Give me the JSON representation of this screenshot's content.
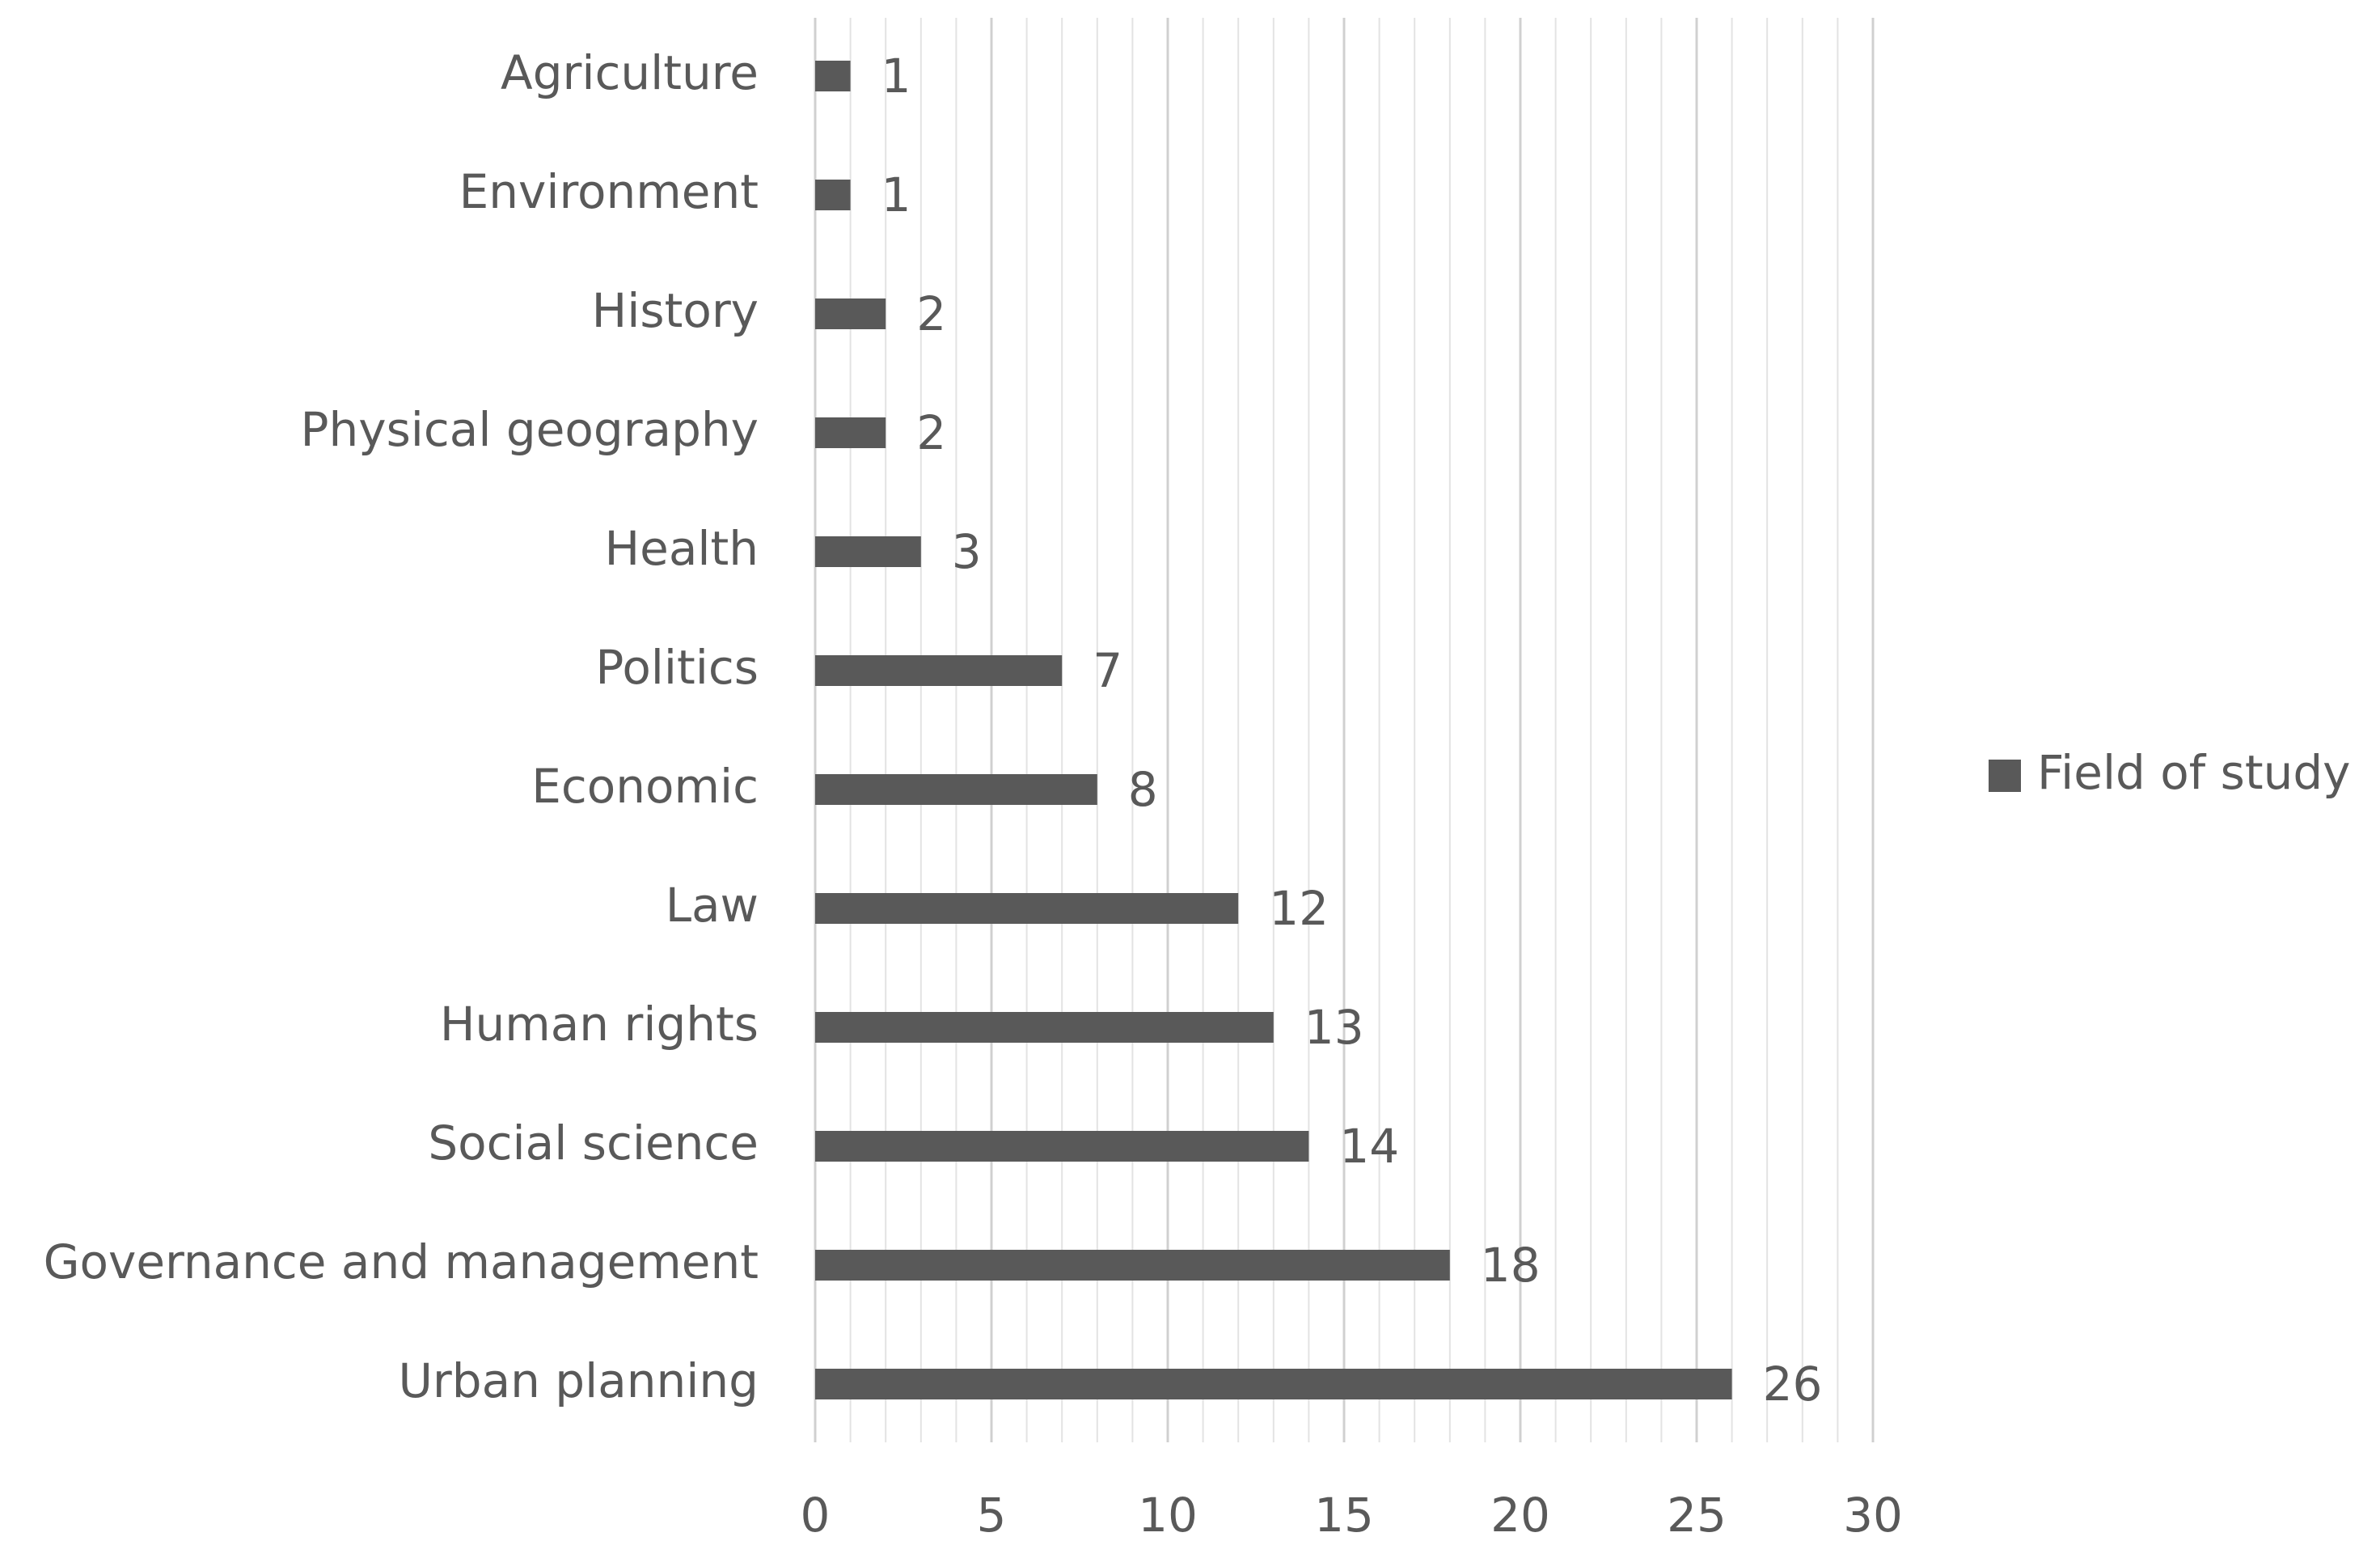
{
  "chart_data": {
    "type": "barh",
    "categories": [
      "Agriculture",
      "Environment",
      "History",
      "Physical geography",
      "Health",
      "Politics",
      "Economic",
      "Law",
      "Human rights",
      "Social science",
      "Governance and management",
      "Urban planning"
    ],
    "series": [
      {
        "name": "Field of study",
        "color": "#595959",
        "values": [
          1,
          1,
          2,
          2,
          3,
          7,
          8,
          12,
          13,
          14,
          18,
          26
        ]
      }
    ],
    "xlim": [
      0,
      30
    ],
    "xticks": [
      0,
      5,
      10,
      15,
      20,
      25,
      30
    ],
    "grid": true,
    "minor_grid_step": 1,
    "legend": "right"
  }
}
